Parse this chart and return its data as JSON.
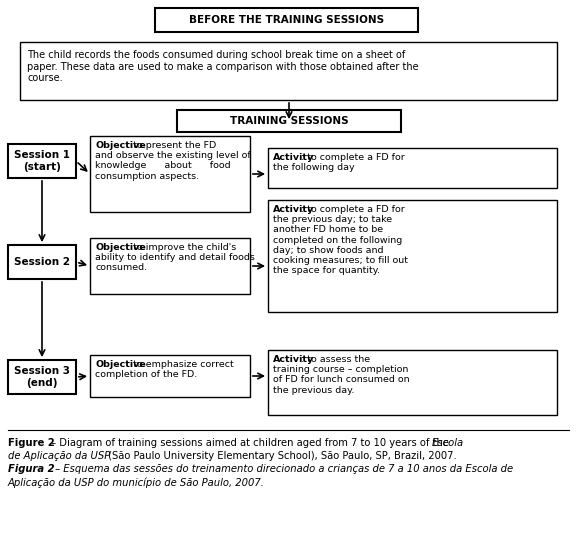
{
  "bg_color": "#ffffff",
  "title_top": "BEFORE THE TRAINING SESSIONS",
  "intro_text": "The child records the foods consumed during school break time on a sheet of\npaper. These data are used to make a comparison with those obtained after the\ncourse.",
  "training_title": "TRAINING SESSIONS",
  "sessions": [
    "Session 1\n(start)",
    "Session 2",
    "Session 3\n(end)"
  ],
  "obj_bold": [
    "Objective",
    "Objective",
    "Objective"
  ],
  "obj_rest": [
    ": to present the FD\nand observe the existing level of\nknowledge      about      food\nconsumption aspects.",
    ": to improve the child's\nability to identify and detail foods\nconsumed.",
    ": to emphasize correct\ncompletion of the FD."
  ],
  "act_bold": [
    "Activity",
    "Activity",
    "Activity"
  ],
  "act_rest": [
    ": to complete a FD for\nthe following day",
    ": to complete a FD for\nthe previous day; to take\nanother FD home to be\ncompleted on the following\nday; to show foods and\ncooking measures; to fill out\nthe space for quantity.",
    ": to assess the\ntraining course – completion\nof FD for lunch consumed on\nthe previous day."
  ],
  "fig_width": 5.77,
  "fig_height": 5.47,
  "dpi": 100
}
